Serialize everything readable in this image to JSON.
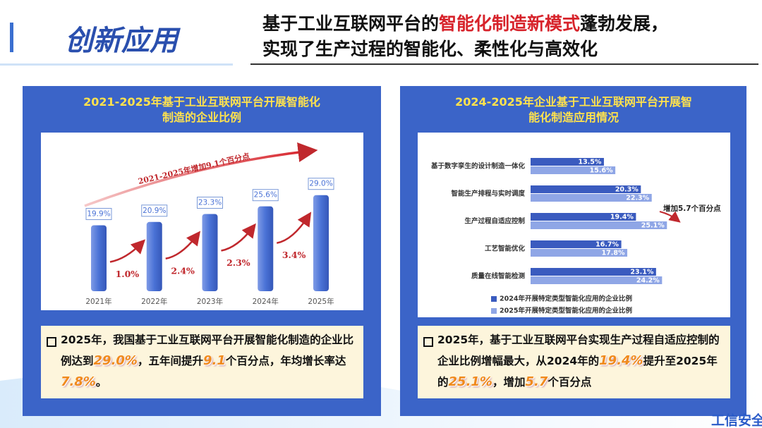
{
  "header": {
    "badge": "创新应用",
    "title_parts": [
      "基于工业互联网平台的",
      "智能化制造新模式",
      "蓬勃发展，",
      "实现了生产过程的智能化、柔性化与高效化"
    ]
  },
  "chart_data": [
    {
      "type": "bar",
      "title": "2021-2025年基于工业互联网平台开展智能化制造的企业比例",
      "categories": [
        "2021年",
        "2022年",
        "2023年",
        "2024年",
        "2025年"
      ],
      "values": [
        19.9,
        20.9,
        23.3,
        25.6,
        29.0
      ],
      "value_labels": [
        "19.9%",
        "20.9%",
        "23.3%",
        "25.6%",
        "29.0%"
      ],
      "color": "#4a72d6",
      "growth": {
        "values": [
          1.0,
          2.4,
          2.3,
          3.4
        ],
        "value_labels": [
          "1.0%",
          "2.4%",
          "2.3%",
          "3.4%"
        ],
        "color": "#c0282d"
      },
      "annotation": "2021-2025年增加9.1个百分点"
    },
    {
      "type": "hbar",
      "title": "2024-2025年企业基于工业互联网平台开展智能化制造应用情况",
      "categories": [
        "基于数字孪生的设计制造一体化",
        "智能生产排程与实时调度",
        "生产过程自适应控制",
        "工艺智能优化",
        "质量在线智能检测"
      ],
      "series": [
        {
          "name": "2024年开展特定类型智能化应用的企业比例",
          "color": "#3a5bbf",
          "values": [
            13.5,
            20.3,
            19.4,
            16.7,
            23.1
          ],
          "value_labels": [
            "13.5%",
            "20.3%",
            "19.4%",
            "16.7%",
            "23.1%"
          ]
        },
        {
          "name": "2025年开展特定类型智能化应用的企业比例",
          "color": "#8fa6e6",
          "values": [
            15.6,
            22.3,
            25.1,
            17.8,
            24.2
          ],
          "value_labels": [
            "15.6%",
            "22.3%",
            "25.1%",
            "17.8%",
            "24.2%"
          ]
        }
      ],
      "annotation": "增加5.7个百分点"
    }
  ],
  "notes": [
    {
      "parts": [
        "2025年，我国基于工业互联网平台开展智能化制造的企业比例达到",
        "29.0%",
        "，五年间提升",
        "9.1",
        "个百分点，年均增长率达",
        "7.8%",
        "。"
      ]
    },
    {
      "parts": [
        "2025年，基于工业互联网平台实现生产过程自适应控制的企业比例增幅最大，从2024年的",
        "19.4%",
        "提升至2025年的",
        "25.1%",
        "，增加",
        "5.7",
        "个百分点"
      ]
    }
  ],
  "footer": "工信安全"
}
